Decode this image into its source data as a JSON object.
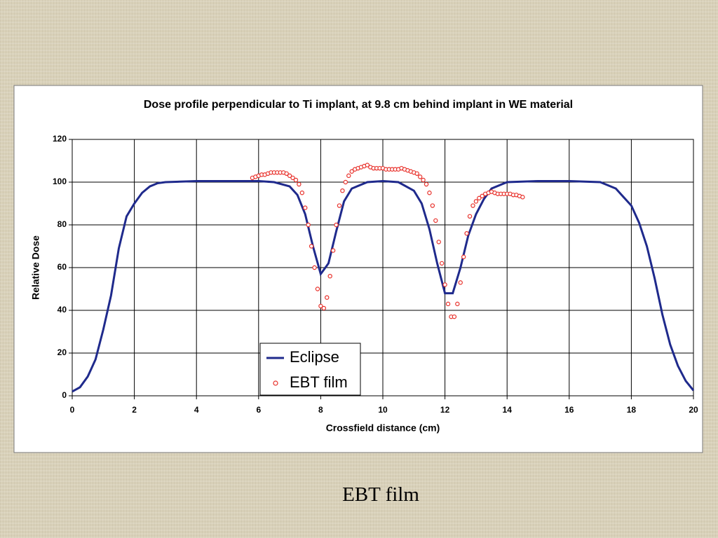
{
  "chart_data": {
    "type": "line",
    "title": "Dose profile perpendicular to Ti implant, at 9.8 cm behind implant in WE material",
    "x_label": "Crossfield distance (cm)",
    "y_label": "Relative Dose",
    "xlim": [
      0,
      20
    ],
    "xticks": [
      0,
      2,
      4,
      6,
      8,
      10,
      12,
      14,
      16,
      18,
      20
    ],
    "ylim": [
      0,
      120
    ],
    "yticks": [
      0,
      20,
      40,
      60,
      80,
      100,
      120
    ],
    "grid": true,
    "legend": "bottom",
    "series": [
      {
        "name": "Eclipse",
        "color": "#1f2a8c",
        "style": "line",
        "x": [
          0,
          0.25,
          0.5,
          0.75,
          1,
          1.25,
          1.5,
          1.75,
          2,
          2.25,
          2.5,
          2.75,
          3,
          4,
          5,
          6,
          6.5,
          7,
          7.25,
          7.5,
          7.75,
          8,
          8.25,
          8.5,
          8.75,
          9,
          9.5,
          10,
          10.5,
          11,
          11.25,
          11.5,
          11.75,
          12,
          12.25,
          12.5,
          12.75,
          13,
          13.25,
          13.5,
          14,
          15,
          16,
          17,
          17.5,
          18,
          18.25,
          18.5,
          18.75,
          19,
          19.25,
          19.5,
          19.75,
          20
        ],
        "values": [
          2,
          4,
          9,
          17,
          31,
          47,
          69,
          84,
          90,
          95,
          98,
          99.5,
          100,
          100.5,
          100.5,
          100.5,
          100,
          98,
          94,
          85,
          70,
          57,
          62,
          77,
          91,
          97,
          100,
          100.5,
          100,
          96,
          90,
          78,
          62,
          48,
          48,
          60,
          75,
          85,
          92,
          97,
          100,
          100.5,
          100.5,
          100,
          97,
          89,
          81,
          70,
          55,
          38,
          24,
          14,
          7,
          2.5
        ]
      },
      {
        "name": "EBT film",
        "color": "#e8302a",
        "style": "markers",
        "x": [
          5.8,
          5.9,
          6.0,
          6.1,
          6.2,
          6.3,
          6.4,
          6.5,
          6.6,
          6.7,
          6.8,
          6.9,
          7.0,
          7.1,
          7.2,
          7.3,
          7.4,
          7.5,
          7.6,
          7.7,
          7.8,
          7.9,
          8.0,
          8.1,
          8.2,
          8.3,
          8.4,
          8.5,
          8.6,
          8.7,
          8.8,
          8.9,
          9.0,
          9.1,
          9.2,
          9.3,
          9.4,
          9.5,
          9.6,
          9.7,
          9.8,
          9.9,
          10.0,
          10.1,
          10.2,
          10.3,
          10.4,
          10.5,
          10.6,
          10.7,
          10.8,
          10.9,
          11.0,
          11.1,
          11.2,
          11.3,
          11.4,
          11.5,
          11.6,
          11.7,
          11.8,
          11.9,
          12.0,
          12.1,
          12.2,
          12.3,
          12.4,
          12.5,
          12.6,
          12.7,
          12.8,
          12.9,
          13.0,
          13.1,
          13.2,
          13.3,
          13.4,
          13.5,
          13.6,
          13.7,
          13.8,
          13.9,
          14.0,
          14.1,
          14.2,
          14.3,
          14.4,
          14.5
        ],
        "values": [
          102,
          102.5,
          103,
          103.5,
          103.5,
          104,
          104.5,
          104.5,
          104.5,
          104.5,
          104.5,
          104,
          103,
          102,
          101,
          99,
          95,
          88,
          80,
          70,
          60,
          50,
          42,
          41,
          46,
          56,
          68,
          80,
          89,
          96,
          100,
          103,
          105,
          106,
          106.5,
          107,
          107.5,
          108,
          107,
          106.5,
          106.5,
          106.5,
          106.5,
          106,
          106,
          106,
          106,
          106,
          106.5,
          106,
          105.5,
          105,
          104.5,
          104,
          102.5,
          101,
          99,
          95,
          89,
          82,
          72,
          62,
          52,
          43,
          37,
          37,
          43,
          53,
          65,
          76,
          84,
          89,
          91,
          92.5,
          93.5,
          94.5,
          95,
          95.5,
          95,
          94.5,
          94.5,
          94.5,
          94.5,
          94.5,
          94,
          94,
          93.5,
          93
        ]
      }
    ]
  },
  "caption": "EBT film"
}
